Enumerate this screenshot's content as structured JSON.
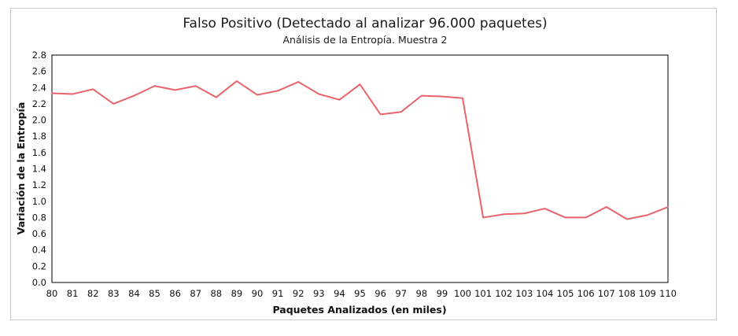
{
  "chart_data": {
    "type": "line",
    "title": "Falso Positivo (Detectado al analizar 96.000 paquetes)",
    "subtitle": "Análisis de la Entropía. Muestra 2",
    "xlabel": "Paquetes Analizados (en miles)",
    "ylabel": "Variación de la Entropía",
    "x": [
      80,
      81,
      82,
      83,
      84,
      85,
      86,
      87,
      88,
      89,
      90,
      91,
      92,
      93,
      94,
      95,
      96,
      97,
      98,
      99,
      100,
      101,
      102,
      103,
      104,
      105,
      106,
      107,
      108,
      109,
      110
    ],
    "series": [
      {
        "values": [
          2.33,
          2.32,
          2.38,
          2.2,
          2.3,
          2.42,
          2.37,
          2.42,
          2.28,
          2.48,
          2.31,
          2.36,
          2.47,
          2.32,
          2.25,
          2.44,
          2.07,
          2.1,
          2.3,
          2.29,
          2.27,
          0.8,
          0.84,
          0.85,
          0.91,
          0.8,
          0.8,
          0.93,
          0.78,
          0.83,
          0.93
        ],
        "color": "#e8646a"
      }
    ],
    "xlim": [
      80,
      110
    ],
    "ylim": [
      0,
      2.8
    ],
    "yticks": [
      "0.0",
      "0.2",
      "0.4",
      "0.6",
      "0.8",
      "1.0",
      "1.2",
      "1.4",
      "1.6",
      "1.8",
      "2.0",
      "2.2",
      "2.4",
      "2.6",
      "2.8"
    ],
    "xticks": [
      "80",
      "81",
      "82",
      "83",
      "84",
      "85",
      "86",
      "87",
      "88",
      "89",
      "90",
      "91",
      "92",
      "93",
      "94",
      "95",
      "96",
      "97",
      "98",
      "99",
      "100",
      "101",
      "102",
      "103",
      "104",
      "105",
      "106",
      "107",
      "108",
      "109",
      "110"
    ],
    "grid": false,
    "legend": "none"
  }
}
